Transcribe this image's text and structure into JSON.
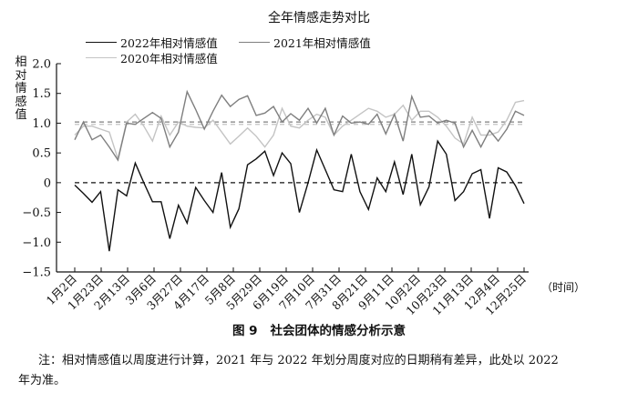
{
  "chart_data": {
    "type": "line",
    "title": "全年情感走势对比",
    "ylabel": "相对情感值",
    "xunit": "（时间）",
    "ylim": [
      -1.5,
      2.0
    ],
    "yticks": [
      "2.0",
      "1.5",
      "1.0",
      "0.5",
      "0",
      "−0.5",
      "−1.0",
      "−1.5"
    ],
    "ytick_values": [
      2.0,
      1.5,
      1.0,
      0.5,
      0,
      -0.5,
      -1.0,
      -1.5
    ],
    "x_tick_labels": [
      "1月2日",
      "1月23日",
      "2月13日",
      "3月6日",
      "3月27日",
      "4月17日",
      "5月8日",
      "5月29日",
      "6月19日",
      "7月10日",
      "7月31日",
      "8月21日",
      "9月11日",
      "10月2日",
      "10月23日",
      "11月13日",
      "12月4日",
      "12月25日"
    ],
    "legend_position": "top",
    "series": [
      {
        "name": "2022年相对情感值",
        "color": "#111111",
        "values": [
          -0.04,
          -0.18,
          -0.33,
          -0.15,
          -1.15,
          -0.12,
          -0.22,
          0.33,
          0.0,
          -0.32,
          -0.32,
          -0.94,
          -0.38,
          -0.68,
          -0.08,
          -0.3,
          -0.5,
          0.17,
          -0.75,
          -0.44,
          0.3,
          0.4,
          0.53,
          0.12,
          0.5,
          0.32,
          -0.5,
          0.0,
          0.55,
          0.22,
          -0.12,
          -0.15,
          0.48,
          -0.15,
          -0.45,
          0.08,
          -0.15,
          0.35,
          -0.2,
          0.48,
          -0.37,
          -0.07,
          0.7,
          0.48,
          -0.3,
          -0.15,
          0.15,
          0.22,
          -0.6,
          0.25,
          0.18,
          -0.05,
          -0.35
        ]
      },
      {
        "name": "2021年相对情感值",
        "color": "#7f7f7f",
        "values": [
          0.72,
          1.02,
          0.72,
          0.8,
          0.6,
          0.38,
          1.0,
          0.98,
          1.08,
          1.18,
          1.08,
          0.6,
          0.85,
          1.53,
          1.23,
          0.9,
          1.2,
          1.47,
          1.28,
          1.4,
          1.46,
          1.13,
          1.17,
          1.28,
          1.02,
          1.16,
          1.05,
          1.25,
          1.0,
          1.25,
          0.8,
          1.12,
          1.0,
          1.02,
          0.98,
          1.15,
          0.82,
          1.15,
          0.7,
          1.45,
          1.1,
          1.12,
          1.0,
          1.05,
          1.0,
          0.6,
          0.88,
          0.6,
          0.88,
          0.7,
          0.9,
          1.2,
          1.13
        ]
      },
      {
        "name": "2020年相对情感值",
        "color": "#c4c4c4",
        "values": [
          0.8,
          0.95,
          0.95,
          0.9,
          0.85,
          0.4,
          1.02,
          1.15,
          0.95,
          0.7,
          1.12,
          0.8,
          1.02,
          0.95,
          0.93,
          0.92,
          1.05,
          0.85,
          0.65,
          0.78,
          0.92,
          0.78,
          0.6,
          0.8,
          1.25,
          0.95,
          0.92,
          1.05,
          1.15,
          1.1,
          0.8,
          0.95,
          1.05,
          1.15,
          1.25,
          1.2,
          1.1,
          1.15,
          1.3,
          1.05,
          1.2,
          1.2,
          1.1,
          0.95,
          0.75,
          0.65,
          1.1,
          0.8,
          0.8,
          0.85,
          1.05,
          1.35,
          1.38
        ]
      }
    ],
    "reference_lines": [
      {
        "value": 0,
        "color": "#111111",
        "style": "dashed"
      },
      {
        "value": 1.02,
        "color": "#7f7f7f",
        "style": "dashed"
      },
      {
        "value": 0.98,
        "color": "#c4c4c4",
        "style": "dashed"
      }
    ]
  },
  "caption": {
    "number": "图 9",
    "text": "社会团体的情感分析示意"
  },
  "note": "注：相对情感值以周度进行计算，2021 年与 2022 年划分周度对应的日期稍有差异，此处以 2022 年为准。"
}
